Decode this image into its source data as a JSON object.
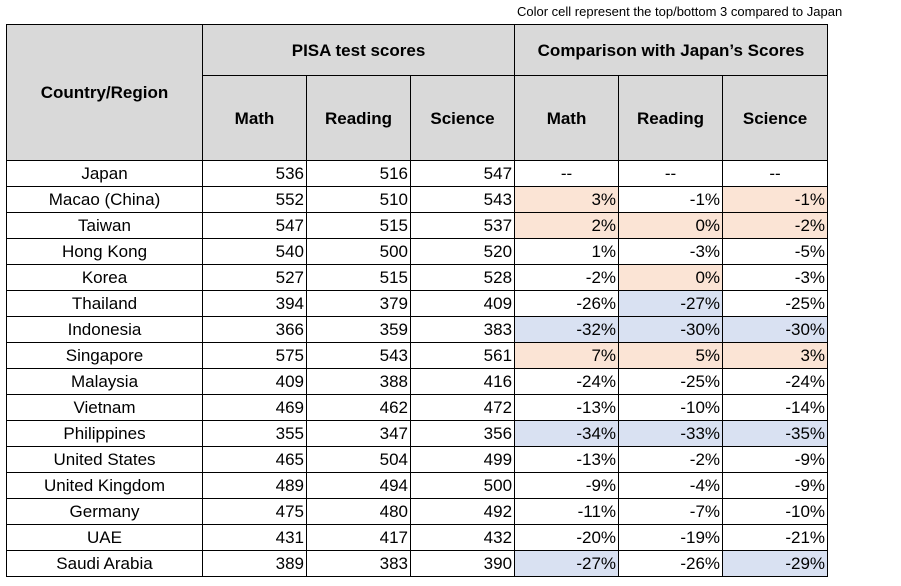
{
  "note": "Color cell represent the top/bottom 3 compared to Japan",
  "header": {
    "country": "Country/Region",
    "pisa_group": "PISA test scores",
    "comp_group": "Comparison with Japan’s Scores",
    "pisa_cols": [
      "Math",
      "Reading",
      "Science"
    ],
    "comp_cols": [
      "Math",
      "Reading",
      "Science"
    ]
  },
  "highlight_colors": {
    "top3": "#fbe4d5",
    "bottom3": "#d9e1f2"
  },
  "rows": [
    {
      "country": "Japan",
      "math": "536",
      "reading": "516",
      "science": "547",
      "c_math": "--",
      "c_reading": "--",
      "c_science": "--",
      "hl": [
        "",
        "",
        ""
      ]
    },
    {
      "country": "Macao (China)",
      "math": "552",
      "reading": "510",
      "science": "543",
      "c_math": "3%",
      "c_reading": "-1%",
      "c_science": "-1%",
      "hl": [
        "top",
        "",
        "top"
      ]
    },
    {
      "country": "Taiwan",
      "math": "547",
      "reading": "515",
      "science": "537",
      "c_math": "2%",
      "c_reading": "0%",
      "c_science": "-2%",
      "hl": [
        "top",
        "top",
        "top"
      ]
    },
    {
      "country": "Hong Kong",
      "math": "540",
      "reading": "500",
      "science": "520",
      "c_math": "1%",
      "c_reading": "-3%",
      "c_science": "-5%",
      "hl": [
        "",
        "",
        ""
      ]
    },
    {
      "country": "Korea",
      "math": "527",
      "reading": "515",
      "science": "528",
      "c_math": "-2%",
      "c_reading": "0%",
      "c_science": "-3%",
      "hl": [
        "",
        "top",
        ""
      ]
    },
    {
      "country": "Thailand",
      "math": "394",
      "reading": "379",
      "science": "409",
      "c_math": "-26%",
      "c_reading": "-27%",
      "c_science": "-25%",
      "hl": [
        "",
        "bot",
        ""
      ]
    },
    {
      "country": "Indonesia",
      "math": "366",
      "reading": "359",
      "science": "383",
      "c_math": "-32%",
      "c_reading": "-30%",
      "c_science": "-30%",
      "hl": [
        "bot",
        "bot",
        "bot"
      ]
    },
    {
      "country": "Singapore",
      "math": "575",
      "reading": "543",
      "science": "561",
      "c_math": "7%",
      "c_reading": "5%",
      "c_science": "3%",
      "hl": [
        "top",
        "top",
        "top"
      ]
    },
    {
      "country": "Malaysia",
      "math": "409",
      "reading": "388",
      "science": "416",
      "c_math": "-24%",
      "c_reading": "-25%",
      "c_science": "-24%",
      "hl": [
        "",
        "",
        ""
      ]
    },
    {
      "country": "Vietnam",
      "math": "469",
      "reading": "462",
      "science": "472",
      "c_math": "-13%",
      "c_reading": "-10%",
      "c_science": "-14%",
      "hl": [
        "",
        "",
        ""
      ]
    },
    {
      "country": "Philippines",
      "math": "355",
      "reading": "347",
      "science": "356",
      "c_math": "-34%",
      "c_reading": "-33%",
      "c_science": "-35%",
      "hl": [
        "bot",
        "bot",
        "bot"
      ]
    },
    {
      "country": "United States",
      "math": "465",
      "reading": "504",
      "science": "499",
      "c_math": "-13%",
      "c_reading": "-2%",
      "c_science": "-9%",
      "hl": [
        "",
        "",
        ""
      ]
    },
    {
      "country": "United Kingdom",
      "math": "489",
      "reading": "494",
      "science": "500",
      "c_math": "-9%",
      "c_reading": "-4%",
      "c_science": "-9%",
      "hl": [
        "",
        "",
        ""
      ]
    },
    {
      "country": "Germany",
      "math": "475",
      "reading": "480",
      "science": "492",
      "c_math": "-11%",
      "c_reading": "-7%",
      "c_science": "-10%",
      "hl": [
        "",
        "",
        ""
      ]
    },
    {
      "country": "UAE",
      "math": "431",
      "reading": "417",
      "science": "432",
      "c_math": "-20%",
      "c_reading": "-19%",
      "c_science": "-21%",
      "hl": [
        "",
        "",
        ""
      ]
    },
    {
      "country": "Saudi Arabia",
      "math": "389",
      "reading": "383",
      "science": "390",
      "c_math": "-27%",
      "c_reading": "-26%",
      "c_science": "-29%",
      "hl": [
        "bot",
        "",
        "bot"
      ]
    }
  ]
}
